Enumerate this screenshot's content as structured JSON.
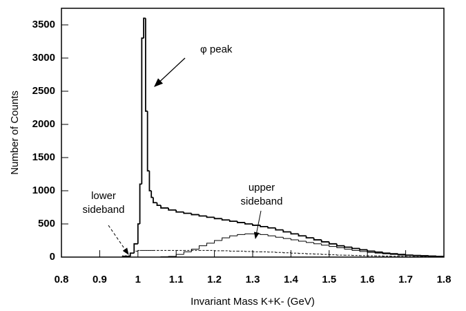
{
  "chart_data": {
    "type": "histogram",
    "xlabel": "Invariant Mass  K+K- (GeV)",
    "ylabel": "Number of Counts",
    "xlim": [
      0.8,
      1.8
    ],
    "ylim": [
      0,
      3750
    ],
    "xticks": [
      0.8,
      0.9,
      1,
      1.1,
      1.2,
      1.3,
      1.4,
      1.5,
      1.6,
      1.7,
      1.8
    ],
    "yticks": [
      0,
      500,
      1000,
      1500,
      2000,
      2500,
      3000,
      3500
    ],
    "bins": [
      0.96,
      0.98,
      0.99,
      1.0,
      1.005,
      1.01,
      1.015,
      1.02,
      1.025,
      1.03,
      1.035,
      1.04,
      1.05,
      1.06,
      1.08,
      1.1,
      1.12,
      1.14,
      1.16,
      1.18,
      1.2,
      1.22,
      1.24,
      1.26,
      1.28,
      1.3,
      1.32,
      1.34,
      1.36,
      1.38,
      1.4,
      1.42,
      1.44,
      1.46,
      1.48,
      1.5,
      1.52,
      1.54,
      1.56,
      1.58,
      1.6,
      1.62,
      1.64,
      1.66,
      1.68,
      1.7,
      1.72,
      1.74,
      1.76,
      1.78,
      1.8
    ],
    "series": [
      {
        "color": "#000000",
        "style": "solid",
        "width": 1.8,
        "values": [
          10,
          60,
          200,
          500,
          1100,
          3300,
          3600,
          2200,
          1300,
          1000,
          900,
          820,
          780,
          740,
          710,
          680,
          660,
          640,
          620,
          600,
          580,
          560,
          540,
          520,
          500,
          480,
          460,
          440,
          410,
          380,
          350,
          320,
          290,
          260,
          230,
          200,
          170,
          150,
          130,
          110,
          90,
          75,
          60,
          50,
          40,
          30,
          25,
          20,
          15,
          10
        ]
      },
      {
        "color": "#000000",
        "style": "dashed",
        "width": 1,
        "values": [
          20,
          60,
          90,
          100,
          100,
          100,
          100,
          100,
          100,
          100,
          100,
          100,
          100,
          100,
          100,
          100,
          100,
          100,
          100,
          100,
          95,
          95,
          90,
          90,
          85,
          80,
          80,
          75,
          70,
          65,
          60,
          55,
          50,
          45,
          40,
          35,
          30,
          28,
          25,
          22,
          20,
          18,
          15,
          12,
          10,
          8,
          6,
          5,
          4,
          3
        ]
      },
      {
        "color": "#000000",
        "style": "solid",
        "width": 1,
        "values": [
          0,
          0,
          0,
          0,
          0,
          0,
          0,
          0,
          0,
          0,
          0,
          0,
          0,
          5,
          10,
          40,
          80,
          120,
          170,
          210,
          250,
          290,
          320,
          340,
          350,
          350,
          340,
          320,
          300,
          280,
          260,
          240,
          220,
          200,
          180,
          160,
          140,
          120,
          100,
          85,
          70,
          60,
          50,
          40,
          30,
          25,
          20,
          15,
          10,
          5
        ]
      }
    ],
    "annotations": [
      {
        "lines": [
          "φ peak"
        ]
      },
      {
        "lines": [
          "lower",
          "sideband"
        ]
      },
      {
        "lines": [
          "upper",
          "sideband"
        ]
      }
    ]
  }
}
